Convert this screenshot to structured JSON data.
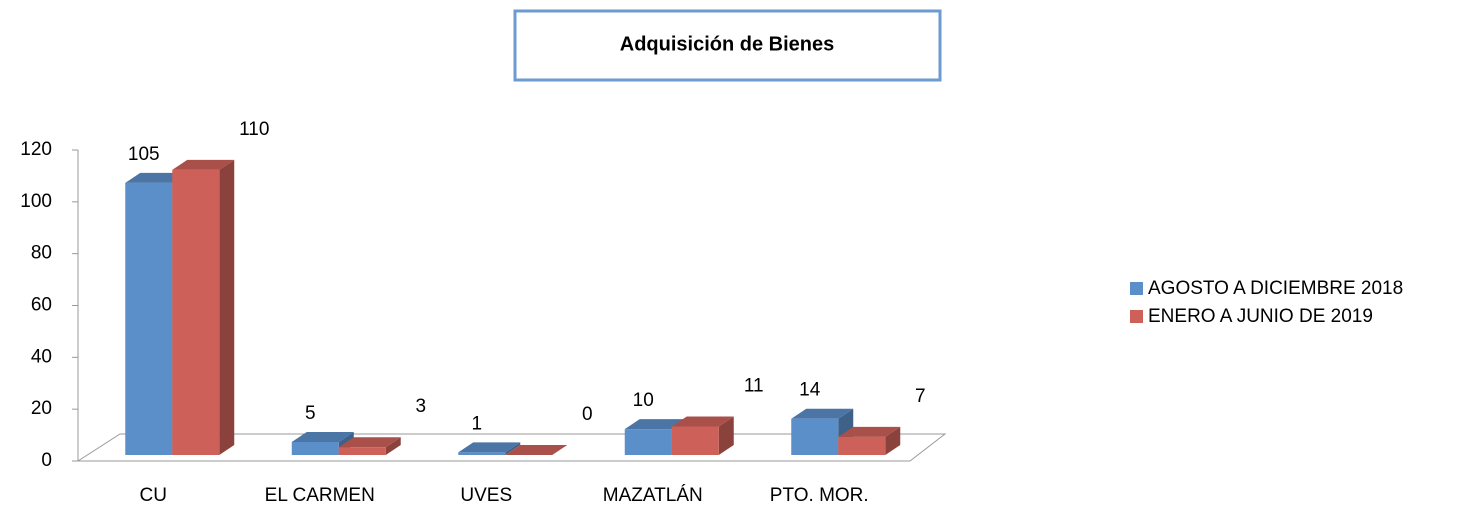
{
  "chart_data": {
    "type": "bar3d",
    "title": "Adquisición de Bienes",
    "categories": [
      "CU",
      "EL CARMEN",
      "UVES",
      "MAZATLÁN",
      "PTO. MOR."
    ],
    "series": [
      {
        "name": "AGOSTO A DICIEMBRE 2018",
        "color": "#5b8fc9",
        "values": [
          105,
          5,
          1,
          10,
          14
        ]
      },
      {
        "name": "ENERO A JUNIO DE 2019",
        "color": "#cd6159",
        "values": [
          110,
          3,
          0,
          11,
          7
        ]
      }
    ],
    "ylim": [
      0,
      120
    ],
    "yticks": [
      0,
      20,
      40,
      60,
      80,
      100,
      120
    ],
    "legend": "right"
  }
}
